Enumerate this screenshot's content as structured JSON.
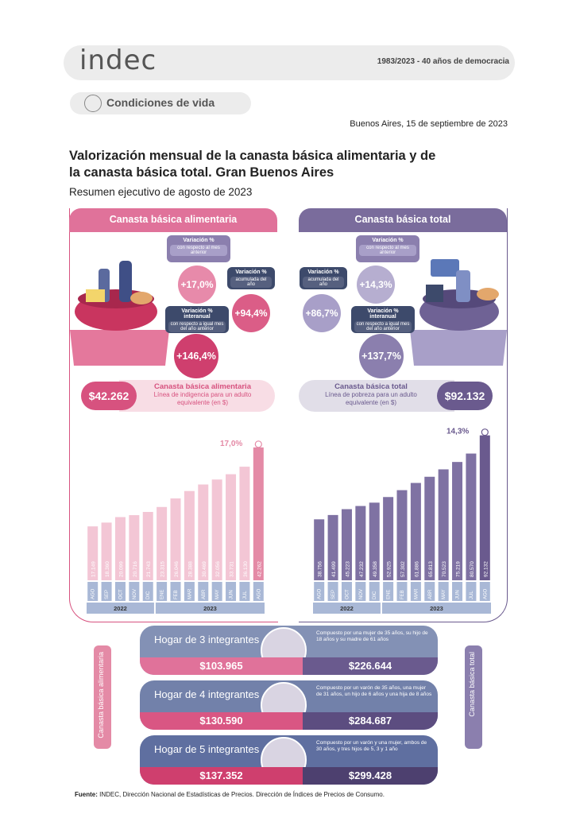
{
  "header": {
    "logo": "indec",
    "tagline": "1983/2023 - 40 años de democracia",
    "section": "Condiciones de vida",
    "date": "Buenos Aires, 15 de septiembre de 2023"
  },
  "title": "Valorización mensual de la canasta básica alimentaria y de la canasta básica total. Gran Buenos Aires",
  "subtitle": "Resumen ejecutivo de agosto de 2023",
  "cba": {
    "heading": "Canasta básica alimentaria",
    "var_mensual": {
      "label": "Variación %",
      "sub": "con respecto al mes anterior",
      "value": "+17,0%"
    },
    "var_acumulada": {
      "label": "Variación %",
      "sub": "acumulada del año",
      "value": "+94,4%"
    },
    "var_interanual": {
      "label": "Variación % interanual",
      "sub": "con respecto a igual mes del año anterior",
      "value": "+146,4%"
    },
    "value": "$42.262",
    "value_title": "Canasta básica alimentaria",
    "value_desc": "Línea de indigencia para un adulto equivalente (en $)",
    "color": "#d7527f"
  },
  "cbt": {
    "heading": "Canasta básica total",
    "var_mensual": {
      "label": "Variación %",
      "sub": "con respecto al mes anterior",
      "value": "+14,3%"
    },
    "var_acumulada": {
      "label": "Variación %",
      "sub": "acumulada del año",
      "value": "+86,7%"
    },
    "var_interanual": {
      "label": "Variación % interanual",
      "sub": "con respecto a igual mes del año anterior",
      "value": "+137,7%"
    },
    "value": "$92.132",
    "value_title": "Canasta básica total",
    "value_desc": "Línea de pobreza para un adulto equivalente (en $)",
    "color": "#6a5a8e"
  },
  "chart_data": [
    {
      "type": "bar",
      "series": [
        {
          "name": "Canasta básica alimentaria",
          "values": [
            17149,
            18360,
            20099,
            20716,
            21743,
            23315,
            26046,
            28388,
            30469,
            32056,
            33731,
            36130,
            42262
          ]
        }
      ],
      "categories": [
        "AGO",
        "SEP",
        "OCT",
        "NOV",
        "DIC",
        "ENE",
        "FEB",
        "MAR",
        "ABR",
        "MAY",
        "JUN",
        "JUL",
        "AGO"
      ],
      "value_labels": [
        "17.149",
        "18.360",
        "20.099",
        "20.716",
        "21.743",
        "23.315",
        "26.046",
        "28.388",
        "30.469",
        "32.056",
        "33.731",
        "36.130",
        "42.262"
      ],
      "year_groups": [
        {
          "label": "2022",
          "from": 0,
          "to": 4
        },
        {
          "label": "2023",
          "from": 5,
          "to": 12
        }
      ],
      "annotation": "17,0%",
      "ylim": [
        0,
        45000
      ]
    },
    {
      "type": "bar",
      "series": [
        {
          "name": "Canasta básica total",
          "values": [
            38756,
            41499,
            45223,
            47232,
            49358,
            52925,
            57302,
            61886,
            65813,
            70523,
            75219,
            80570,
            92132
          ]
        }
      ],
      "categories": [
        "AGO",
        "SEP",
        "OCT",
        "NOV",
        "DIC",
        "ENE",
        "FEB",
        "MAR",
        "ABR",
        "MAY",
        "JUN",
        "JUL",
        "AGO"
      ],
      "value_labels": [
        "38.756",
        "41.499",
        "45.223",
        "47.232",
        "49.358",
        "52.925",
        "57.302",
        "61.886",
        "65.813",
        "70.523",
        "75.219",
        "80.570",
        "92.132"
      ],
      "year_groups": [
        {
          "label": "2022",
          "from": 0,
          "to": 4
        },
        {
          "label": "2023",
          "from": 5,
          "to": 12
        }
      ],
      "annotation": "14,3%",
      "ylim": [
        0,
        95000
      ]
    }
  ],
  "hogares": [
    {
      "title": "Hogar de 3 integrantes",
      "cba": "$103.965",
      "cbt": "$226.644",
      "desc": "Compuesto por una mujer de 35 años, su hijo de 18 años y su madre de 61 años"
    },
    {
      "title": "Hogar de 4 integrantes",
      "cba": "$130.590",
      "cbt": "$284.687",
      "desc": "Compuesto por un varón de 35 años, una mujer de 31 años, un hijo de 6 años y una hija de 8 años"
    },
    {
      "title": "Hogar de 5 integrantes",
      "cba": "$137.352",
      "cbt": "$299.428",
      "desc": "Compuesto por un varón y una mujer, ambos de 30 años, y tres hijos de 5, 3 y 1 año"
    }
  ],
  "side_labels": {
    "left": "Canasta básica alimentaria",
    "right": "Canasta básica total"
  },
  "source": {
    "label": "Fuente:",
    "text": " INDEC, Dirección Nacional de Estadísticas de Precios. Dirección de Índices de Precios de Consumo."
  }
}
